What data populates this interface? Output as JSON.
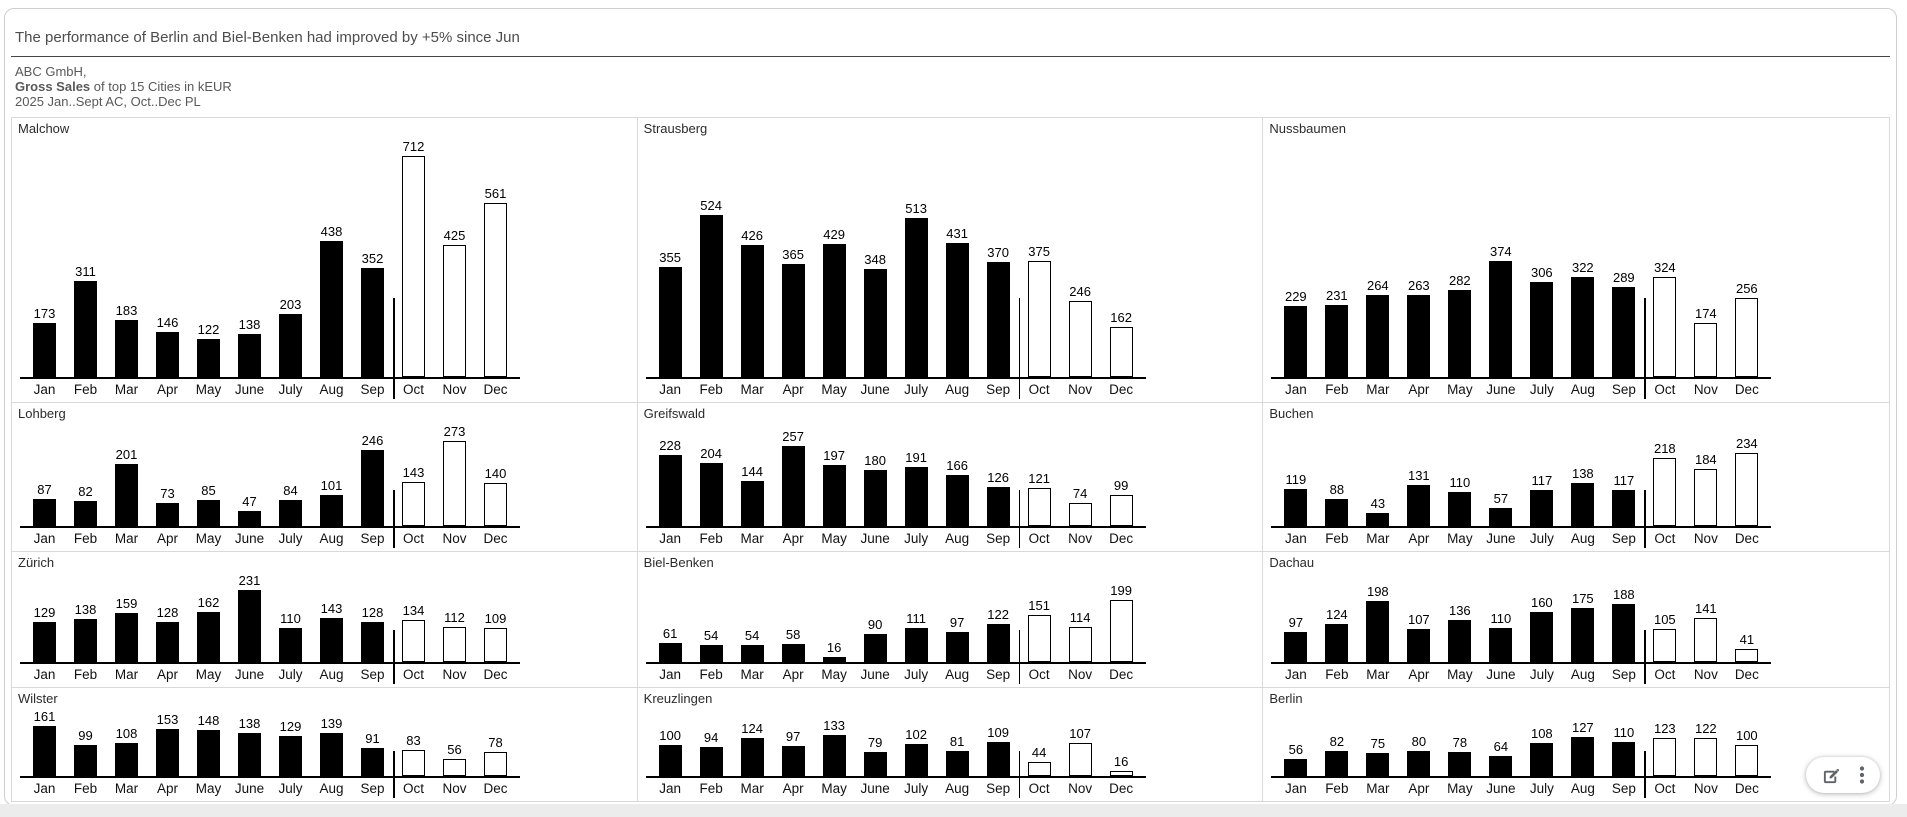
{
  "headline": "The performance of Berlin and Biel-Benken had improved by +5% since Jun",
  "subtitle": {
    "company": "ABC GmbH,",
    "measure_bold": "Gross Sales",
    "measure_rest": " of top 15 Cities in kEUR",
    "period": "2025 Jan..Sept AC, Oct..Dec PL"
  },
  "actions": {
    "edit_icon": "edit-pencil-square",
    "more_icon": "vertical-ellipsis"
  },
  "colors": {
    "ac_bar": "#000000",
    "pl_bar_fill": "#ffffff",
    "pl_bar_border": "#000000",
    "cell_border": "#d9d9d9",
    "headline_text": "#4d4d4d",
    "subtitle_text": "#595959"
  },
  "chart_data": {
    "type": "bar",
    "layout": "small-multiples (3 columns x 4 rows, shared value scale)",
    "title": "Gross Sales of top 15 Cities in kEUR",
    "subtitle": "2025 Jan..Sept AC, Oct..Dec PL",
    "unit": "kEUR",
    "categories": [
      "Jan",
      "Feb",
      "Mar",
      "Apr",
      "May",
      "June",
      "July",
      "Aug",
      "Sep",
      "Oct",
      "Nov",
      "Dec"
    ],
    "actual_months": 9,
    "plan_months": 3,
    "series_styles": {
      "AC": "solid black bars (Jan-Sep)",
      "PL": "white outlined bars (Oct-Dec)"
    },
    "value_labels": "shown above every bar",
    "global_max": 712,
    "charts": [
      {
        "city": "Malchow",
        "values": [
          173,
          311,
          183,
          146,
          122,
          138,
          203,
          438,
          352,
          712,
          425,
          561
        ]
      },
      {
        "city": "Strausberg",
        "values": [
          355,
          524,
          426,
          365,
          429,
          348,
          513,
          431,
          370,
          375,
          246,
          162
        ]
      },
      {
        "city": "Nussbaumen",
        "values": [
          229,
          231,
          264,
          263,
          282,
          374,
          306,
          322,
          289,
          324,
          174,
          256
        ]
      },
      {
        "city": "Lohberg",
        "values": [
          87,
          82,
          201,
          73,
          85,
          47,
          84,
          101,
          246,
          143,
          273,
          140
        ]
      },
      {
        "city": "Greifswald",
        "values": [
          228,
          204,
          144,
          257,
          197,
          180,
          191,
          166,
          126,
          121,
          74,
          99
        ]
      },
      {
        "city": "Buchen",
        "values": [
          119,
          88,
          43,
          131,
          110,
          57,
          117,
          138,
          117,
          218,
          184,
          234
        ]
      },
      {
        "city": "Zürich",
        "values": [
          129,
          138,
          159,
          128,
          162,
          231,
          110,
          143,
          128,
          134,
          112,
          109
        ]
      },
      {
        "city": "Biel-Benken",
        "values": [
          61,
          54,
          54,
          58,
          16,
          90,
          111,
          97,
          122,
          151,
          114,
          199
        ]
      },
      {
        "city": "Dachau",
        "values": [
          97,
          124,
          198,
          107,
          136,
          110,
          160,
          175,
          188,
          105,
          141,
          41
        ]
      },
      {
        "city": "Wilster",
        "values": [
          161,
          99,
          108,
          153,
          148,
          138,
          129,
          139,
          91,
          83,
          56,
          78
        ]
      },
      {
        "city": "Kreuzlingen",
        "values": [
          100,
          94,
          124,
          97,
          133,
          79,
          102,
          81,
          109,
          44,
          107,
          16
        ]
      },
      {
        "city": "Berlin",
        "values": [
          56,
          82,
          75,
          80,
          78,
          64,
          108,
          127,
          110,
          123,
          122,
          100
        ]
      }
    ]
  }
}
